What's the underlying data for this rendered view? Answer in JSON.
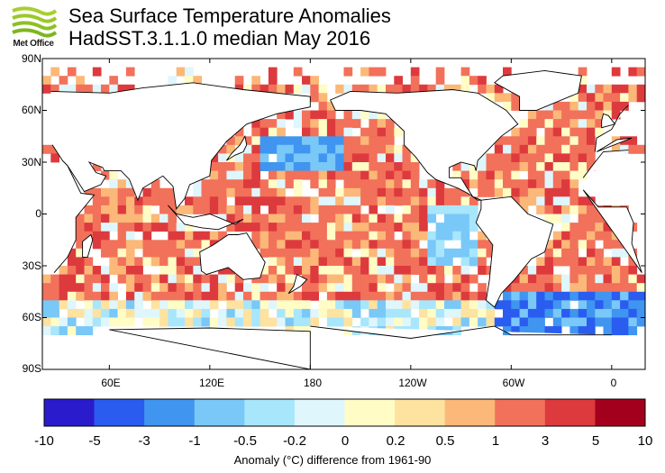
{
  "header": {
    "logo_text": "Met Office",
    "title_line1": "Sea Surface Temperature Anomalies",
    "title_line2": "HadSST.3.1.1.0 median May 2016"
  },
  "map": {
    "lat_labels": [
      "90N",
      "60N",
      "30N",
      "0",
      "30S",
      "60S",
      "90S"
    ],
    "lon_labels": [
      "60E",
      "120E",
      "180",
      "120W",
      "60W",
      "0"
    ],
    "land_color": "#ffffff",
    "missing_color": "#ffffff"
  },
  "colorbar": {
    "ticks": [
      "-10",
      "-5",
      "-3",
      "-1",
      "-0.5",
      "-0.2",
      "0",
      "0.2",
      "0.5",
      "1",
      "3",
      "5",
      "10"
    ],
    "colors": [
      "#2a1ccc",
      "#2a5cf0",
      "#3f95f0",
      "#79c8f8",
      "#a8e6fc",
      "#dff6fd",
      "#fffcc6",
      "#fde2a0",
      "#fbb878",
      "#f2715a",
      "#dd3a3e",
      "#a3001e"
    ],
    "caption": "Anomaly (°C) difference from 1961-90"
  }
}
